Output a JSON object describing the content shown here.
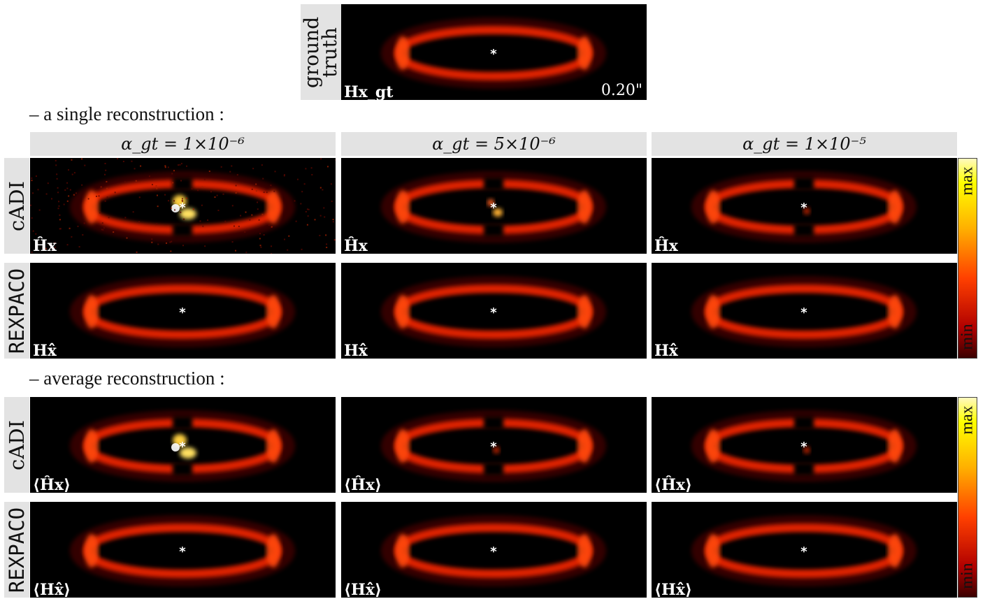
{
  "ground_truth": {
    "label": "ground truth",
    "caption": "Hx_gt",
    "scale": "0.20\""
  },
  "sections": {
    "single": "– a single reconstruction :",
    "average": "– average reconstruction :"
  },
  "columns": [
    "α_gt = 1×10⁻⁶",
    "α_gt = 5×10⁻⁶",
    "α_gt = 1×10⁻⁵"
  ],
  "rows": {
    "single": [
      {
        "method": "cADI",
        "caption": "Ĥx"
      },
      {
        "method": "REXPACO",
        "caption": "Hx̂"
      }
    ],
    "average": [
      {
        "method": "cADI",
        "caption": "⟨Ĥx⟩"
      },
      {
        "method": "REXPACO",
        "caption": "⟨Hx̂⟩"
      }
    ]
  },
  "colorbar": {
    "max": "max",
    "min": "min",
    "colors": [
      "#fff9c0",
      "#ffff00",
      "#ff4000",
      "#3a0000"
    ]
  }
}
